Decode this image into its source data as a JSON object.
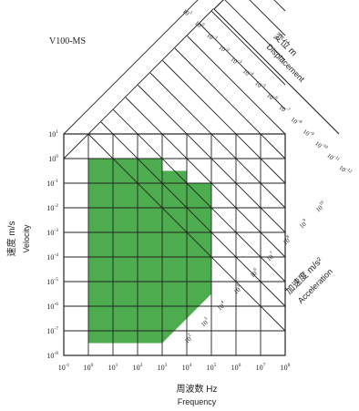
{
  "chart_data": {
    "type": "tripartite",
    "model_label": "V100-MS",
    "x_axis": {
      "label_jp": "周波数 Hz",
      "label_en": "Frequency",
      "unit": "Hz",
      "exponents": [
        -1,
        0,
        1,
        2,
        3,
        4,
        5,
        6,
        7,
        8
      ]
    },
    "y_axis": {
      "label_jp": "速度 m/s",
      "label_en": "Velocity",
      "unit": "m/s",
      "exponents": [
        -8,
        -7,
        -6,
        -5,
        -4,
        -3,
        -2,
        -1,
        0,
        1
      ]
    },
    "displacement_axis": {
      "label_jp": "変位 m",
      "label_en": "Displacement",
      "exponents": [
        1,
        0,
        -1,
        -2,
        -3,
        -4,
        -5,
        -6,
        -7,
        -8,
        -9,
        -10,
        -11,
        -12
      ]
    },
    "acceleration_axis": {
      "label_jp": "加速度 m/s²",
      "label_en": "Acceleration",
      "exponents": [
        2,
        3,
        4,
        5,
        6,
        7,
        8,
        9,
        10
      ]
    },
    "operating_range": {
      "color": "#4dac4d",
      "vertices_log10": [
        [
          0,
          -7.5
        ],
        [
          0,
          0
        ],
        [
          3,
          0
        ],
        [
          3,
          -0.5
        ],
        [
          4,
          -0.5
        ],
        [
          4,
          -1
        ],
        [
          5,
          -1
        ],
        [
          5,
          -5.5
        ],
        [
          4,
          -6.5
        ],
        [
          3,
          -7.5
        ]
      ]
    },
    "colors": {
      "grid": "#222222",
      "fill": "#4dac4d",
      "text": "#222222"
    }
  },
  "labels": {
    "model": "V100-MS",
    "freq_jp": "周波数 Hz",
    "freq_en": "Frequency",
    "vel_jp": "速度 m/s",
    "vel_en": "Velocity",
    "disp_jp": "変位 m",
    "disp_en": "Displacement",
    "acc_jp": "加速度 m/s²",
    "acc_en": "Acceleration"
  }
}
